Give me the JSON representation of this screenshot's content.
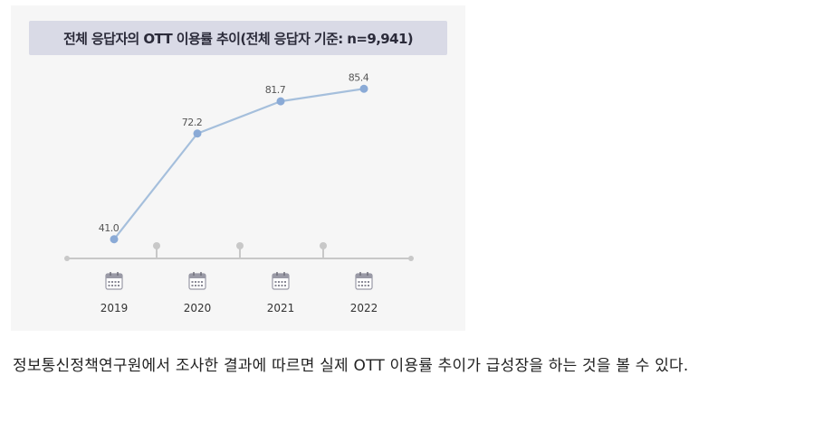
{
  "chart_data": {
    "type": "line",
    "title": "전체 응답자의 OTT 이용률 추이(전체 응답자 기준: n=9,941)",
    "categories": [
      "2019",
      "2020",
      "2021",
      "2022"
    ],
    "series": [
      {
        "values": [
          41.0,
          72.2,
          81.7,
          85.4
        ],
        "labels": [
          "41.0",
          "72.2",
          "81.7",
          "85.4"
        ]
      }
    ],
    "ylim": [
      30,
      90
    ],
    "grid": false,
    "colors": {
      "line": "#a5bfdc",
      "point": "#8aaad6",
      "axis": "#c8c8c8",
      "title_bg": "#d9dae6"
    },
    "x_icon": "calendar-icon"
  },
  "caption": "정보통신정책연구원에서 조사한 결과에 따르면 실제 OTT 이용률 추이가 급성장을 하는 것을 볼 수 있다."
}
